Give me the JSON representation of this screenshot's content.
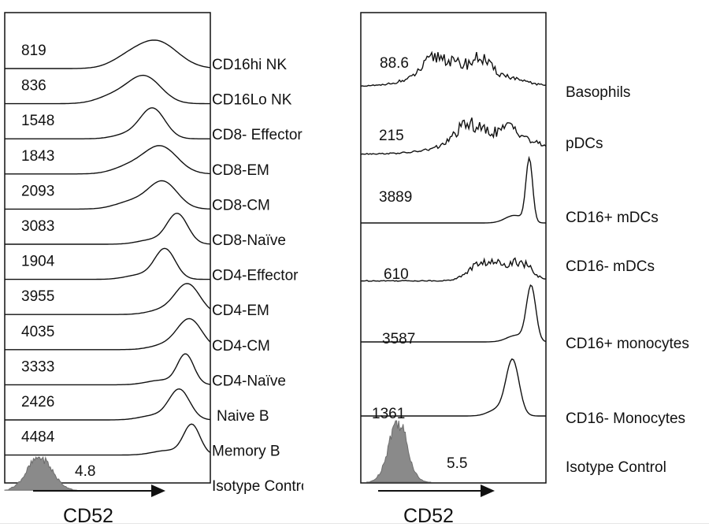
{
  "chart_data": [
    {
      "type": "histogram-overlay",
      "xlabel": "CD52",
      "panel": "left",
      "rows": [
        {
          "label": "CD16hi NK",
          "value": "819",
          "peak": 0.74,
          "width": 0.1,
          "kind": "broad"
        },
        {
          "label": "CD16Lo NK",
          "value": "836",
          "peak": 0.68,
          "width": 0.08,
          "kind": "broad"
        },
        {
          "label": "CD8- Effector",
          "value": "1548",
          "peak": 0.72,
          "width": 0.06,
          "kind": "peak"
        },
        {
          "label": "CD8-EM",
          "value": "1843",
          "peak": 0.76,
          "width": 0.08,
          "kind": "broad"
        },
        {
          "label": "CD8-CM",
          "value": "2093",
          "peak": 0.77,
          "width": 0.07,
          "kind": "broad"
        },
        {
          "label": "CD8-Naïve",
          "value": "3083",
          "peak": 0.84,
          "width": 0.05,
          "kind": "peak"
        },
        {
          "label": "CD4-Effector",
          "value": "1904",
          "peak": 0.78,
          "width": 0.05,
          "kind": "peak"
        },
        {
          "label": "CD4-EM",
          "value": "3955",
          "peak": 0.89,
          "width": 0.06,
          "kind": "peak"
        },
        {
          "label": "CD4-CM",
          "value": "4035",
          "peak": 0.9,
          "width": 0.06,
          "kind": "peak"
        },
        {
          "label": "CD4-Naïve",
          "value": "3333",
          "peak": 0.88,
          "width": 0.04,
          "kind": "peak"
        },
        {
          "label": "Naive B",
          "value": "2426",
          "peak": 0.85,
          "width": 0.05,
          "kind": "peak"
        },
        {
          "label": "Memory B",
          "value": "4484",
          "peak": 0.91,
          "width": 0.04,
          "kind": "peak"
        },
        {
          "label": "Isotype Control",
          "value": "4.8",
          "peak": 0.17,
          "width": 0.06,
          "kind": "isotype"
        }
      ]
    },
    {
      "type": "histogram-overlay",
      "xlabel": "CD52",
      "panel": "right",
      "rows": [
        {
          "label": "Basophils",
          "value": "88.6",
          "peak": 0.55,
          "width": 0.2,
          "kind": "noisy"
        },
        {
          "label": "pDCs",
          "value": "215",
          "peak": 0.72,
          "width": 0.2,
          "kind": "noisy"
        },
        {
          "label": "CD16+ mDCs",
          "value": "3889",
          "peak": 0.91,
          "width": 0.018,
          "kind": "sharp"
        },
        {
          "label": "CD16- mDCs",
          "value": "610",
          "peak": 0.78,
          "width": 0.1,
          "kind": "noisy"
        },
        {
          "label": "CD16+ monocytes",
          "value": "3587",
          "peak": 0.92,
          "width": 0.025,
          "kind": "sharp"
        },
        {
          "label": "CD16- Monocytes",
          "value": "1361",
          "peak": 0.82,
          "width": 0.035,
          "kind": "sharp"
        },
        {
          "label": "Isotype Control",
          "value": "5.5",
          "peak": 0.2,
          "width": 0.05,
          "kind": "isotype"
        }
      ]
    }
  ]
}
